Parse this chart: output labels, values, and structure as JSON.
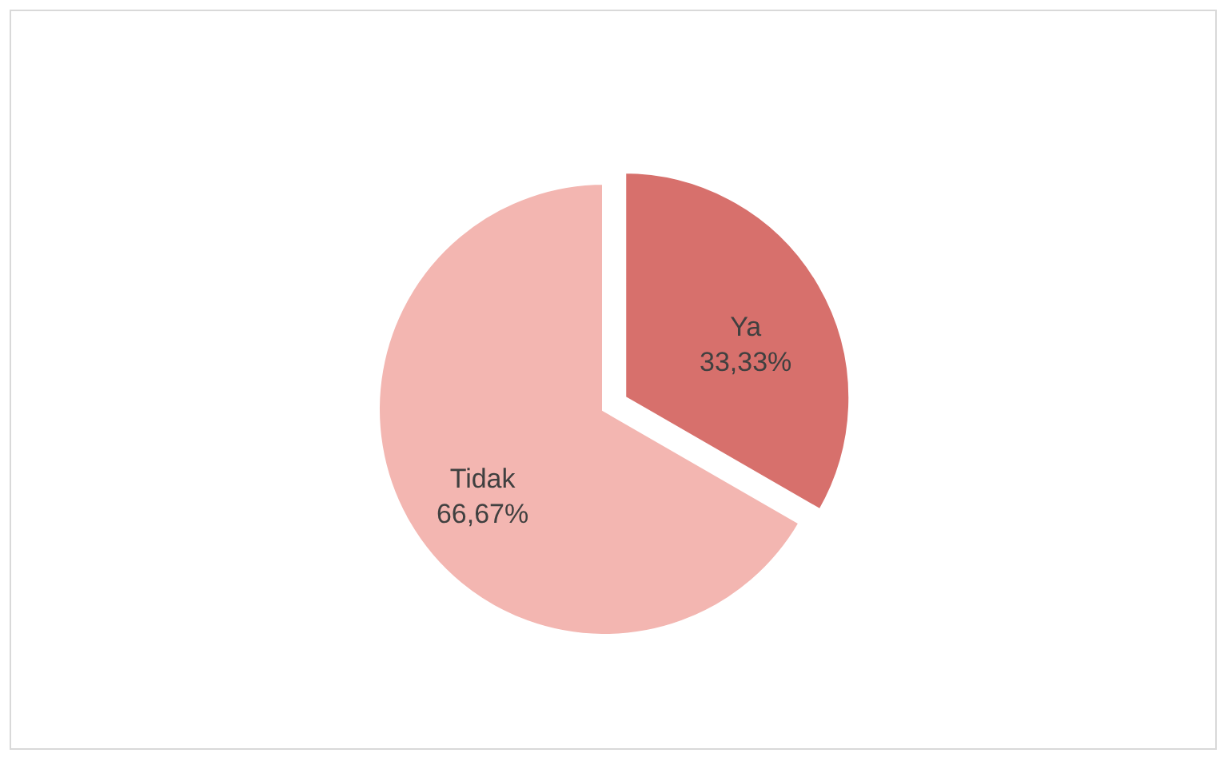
{
  "chart_data": {
    "type": "pie",
    "categories": [
      "Ya",
      "Tidak"
    ],
    "values": [
      33.33,
      66.67
    ],
    "colors": [
      "#d7706c",
      "#f3b6b1"
    ],
    "value_labels": [
      "33,33%",
      "66,67%"
    ]
  }
}
